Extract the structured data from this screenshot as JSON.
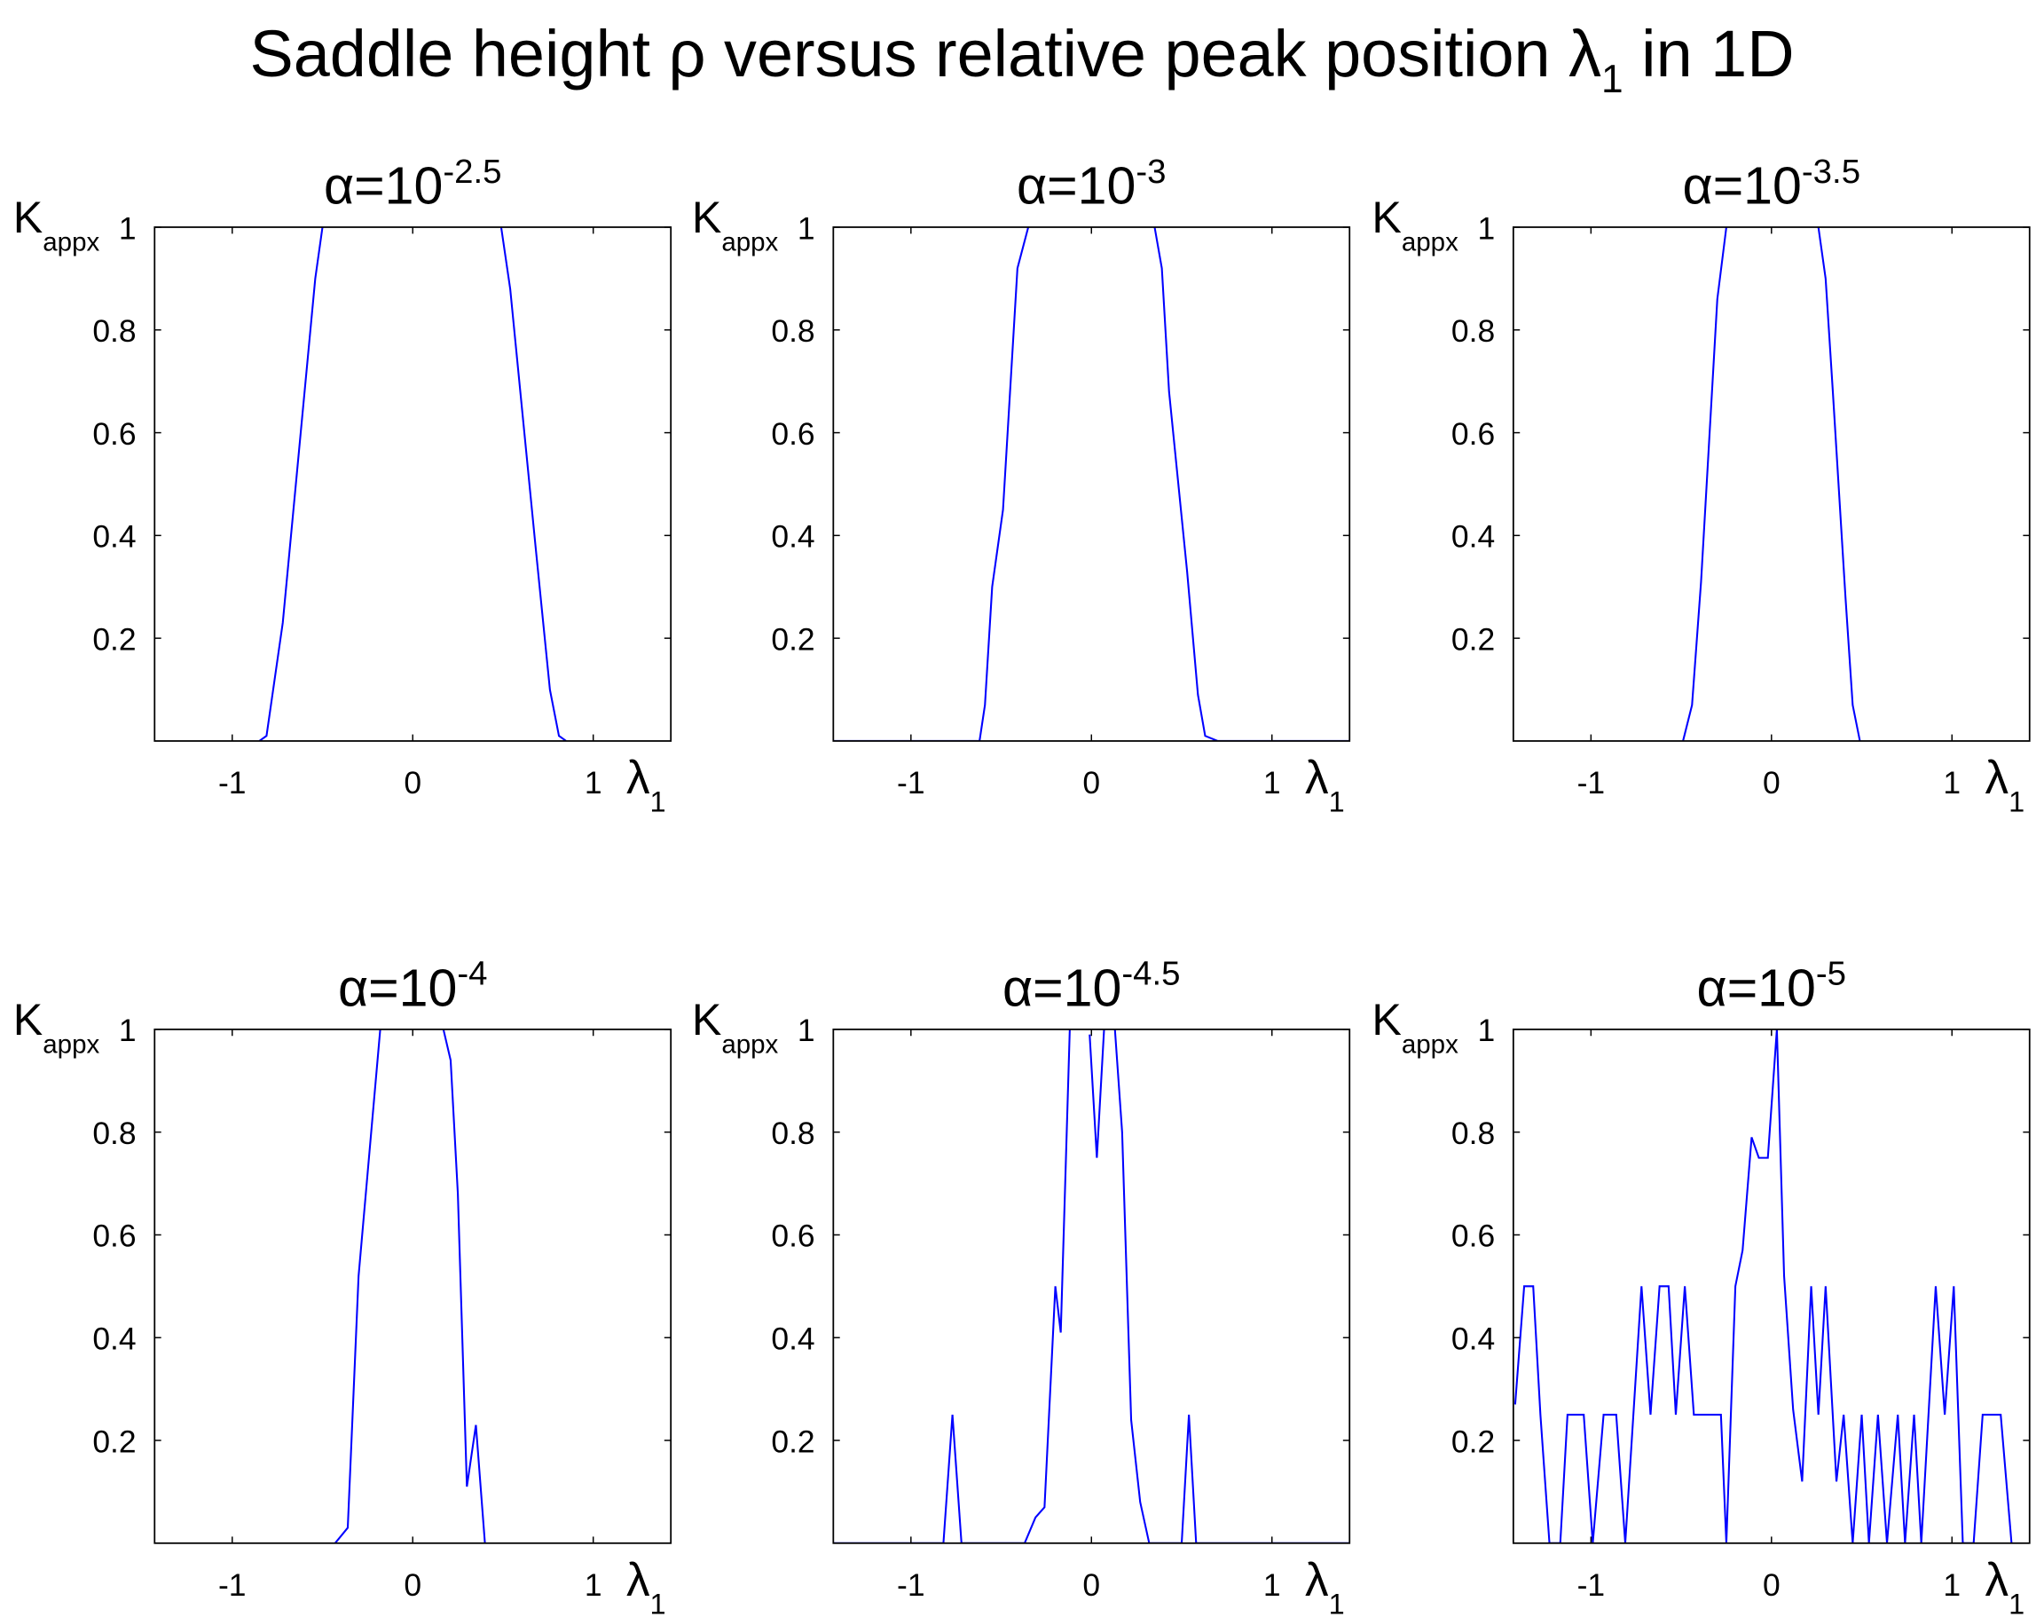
{
  "title": "Saddle height ρ versus relative peak position λ",
  "title_subscript": "1",
  "title_suffix": " in 1D",
  "chart_data": [
    {
      "type": "line",
      "title": "α=10",
      "title_superscript": "-2.5",
      "ylabel": "K",
      "ylabel_subscript": "appx",
      "xlabel": "λ",
      "xlabel_subscript": "1",
      "xlim": [
        -1.43,
        1.43
      ],
      "ylim": [
        0,
        1
      ],
      "xticks": [
        -1,
        0,
        1
      ],
      "yticks": [
        0.2,
        0.4,
        0.6,
        0.8,
        1
      ],
      "series": [
        {
          "color": "#0000ff",
          "x": [
            -0.85,
            -0.81,
            -0.72,
            -0.54,
            -0.5,
            null,
            0.49,
            0.54,
            0.68,
            0.76,
            0.81,
            0.85
          ],
          "values": [
            0,
            0.01,
            0.23,
            0.9,
            1,
            null,
            1,
            0.88,
            0.38,
            0.1,
            0.01,
            0
          ]
        }
      ]
    },
    {
      "type": "line",
      "title": "α=10",
      "title_superscript": "-3",
      "ylabel": "K",
      "ylabel_subscript": "appx",
      "xlabel": "λ",
      "xlabel_subscript": "1",
      "xlim": [
        -1.43,
        1.43
      ],
      "ylim": [
        0,
        1
      ],
      "xticks": [
        -1,
        0,
        1
      ],
      "yticks": [
        0.2,
        0.4,
        0.6,
        0.8,
        1
      ],
      "series": [
        {
          "color": "#0000ff",
          "x": [
            -1.43,
            -0.62,
            -0.59,
            -0.55,
            -0.49,
            -0.41,
            -0.35,
            null,
            0.35,
            0.39,
            0.43,
            0.53,
            0.59,
            0.63,
            0.7,
            1.43
          ],
          "values": [
            0,
            0,
            0.07,
            0.3,
            0.45,
            0.92,
            1,
            null,
            1,
            0.92,
            0.68,
            0.33,
            0.09,
            0.01,
            0,
            0
          ]
        }
      ]
    },
    {
      "type": "line",
      "title": "α=10",
      "title_superscript": "-3.5",
      "ylabel": "K",
      "ylabel_subscript": "appx",
      "xlabel": "λ",
      "xlabel_subscript": "1",
      "xlim": [
        -1.43,
        1.43
      ],
      "ylim": [
        0,
        1
      ],
      "xticks": [
        -1,
        0,
        1
      ],
      "yticks": [
        0.2,
        0.4,
        0.6,
        0.8,
        1
      ],
      "series": [
        {
          "color": "#0000ff",
          "x": [
            -0.49,
            -0.44,
            -0.39,
            -0.3,
            -0.25,
            null,
            0.26,
            0.3,
            0.34,
            0.41,
            0.45,
            0.49
          ],
          "values": [
            0,
            0.07,
            0.31,
            0.86,
            1,
            null,
            1,
            0.9,
            0.68,
            0.28,
            0.07,
            0
          ]
        }
      ]
    },
    {
      "type": "line",
      "title": "α=10",
      "title_superscript": "-4",
      "ylabel": "K",
      "ylabel_subscript": "appx",
      "xlabel": "λ",
      "xlabel_subscript": "1",
      "xlim": [
        -1.43,
        1.43
      ],
      "ylim": [
        0,
        1
      ],
      "xticks": [
        -1,
        0,
        1
      ],
      "yticks": [
        0.2,
        0.4,
        0.6,
        0.8,
        1
      ],
      "series": [
        {
          "color": "#0000ff",
          "x": [
            -0.43,
            -0.36,
            -0.3,
            -0.25,
            -0.18,
            null,
            0.17,
            0.21,
            0.25,
            0.3,
            0.35,
            0.4
          ],
          "values": [
            0,
            0.03,
            0.52,
            0.72,
            1,
            null,
            1,
            0.94,
            0.68,
            0.11,
            0.23,
            0
          ]
        }
      ]
    },
    {
      "type": "line",
      "title": "α=10",
      "title_superscript": "-4.5",
      "ylabel": "K",
      "ylabel_subscript": "appx",
      "xlabel": "λ",
      "xlabel_subscript": "1",
      "xlim": [
        -1.43,
        1.43
      ],
      "ylim": [
        0,
        1
      ],
      "xticks": [
        -1,
        0,
        1
      ],
      "yticks": [
        0.2,
        0.4,
        0.6,
        0.8,
        1
      ],
      "series": [
        {
          "color": "#0000ff",
          "x": [
            -1.43,
            -0.82,
            -0.77,
            -0.72,
            -0.37,
            -0.31,
            -0.26,
            -0.2,
            -0.17,
            -0.12,
            null,
            -0.01,
            0.03,
            0.07,
            null,
            0.13,
            0.17,
            0.22,
            0.27,
            0.32,
            0.5,
            0.54,
            0.58,
            1.43
          ],
          "values": [
            0,
            0,
            0.25,
            0,
            0,
            0.05,
            0.07,
            0.5,
            0.41,
            1,
            null,
            0.99,
            0.75,
            1,
            null,
            1,
            0.8,
            0.24,
            0.08,
            0,
            0,
            0.25,
            0,
            0
          ]
        }
      ]
    },
    {
      "type": "line",
      "title": "α=10",
      "title_superscript": "-5",
      "ylabel": "K",
      "ylabel_subscript": "appx",
      "xlabel": "λ",
      "xlabel_subscript": "1",
      "xlim": [
        -1.43,
        1.43
      ],
      "ylim": [
        0,
        1
      ],
      "xticks": [
        -1,
        0,
        1
      ],
      "yticks": [
        0.2,
        0.4,
        0.6,
        0.8,
        1
      ],
      "series": [
        {
          "color": "#0000ff",
          "x": [
            -1.42,
            -1.37,
            -1.32,
            -1.28,
            -1.23,
            -1.17,
            -1.13,
            -1.04,
            -0.99,
            -0.93,
            -0.86,
            -0.81,
            -0.72,
            -0.67,
            -0.62,
            -0.57,
            -0.53,
            -0.48,
            -0.43,
            -0.28,
            -0.25,
            -0.2,
            -0.16,
            -0.11,
            -0.07,
            -0.02,
            0.03,
            0.07,
            0.12,
            0.17,
            0.22,
            0.26,
            0.3,
            0.36,
            0.4,
            0.45,
            0.5,
            0.54,
            0.59,
            0.64,
            0.7,
            0.74,
            0.79,
            0.83,
            0.91,
            0.96,
            1.01,
            1.06,
            1.12,
            1.17,
            1.27,
            1.33
          ],
          "values": [
            0.27,
            0.5,
            0.5,
            0.25,
            0,
            0,
            0.25,
            0.25,
            0,
            0.25,
            0.25,
            0,
            0.5,
            0.25,
            0.5,
            0.5,
            0.25,
            0.5,
            0.25,
            0.25,
            0,
            0.5,
            0.57,
            0.79,
            0.75,
            0.75,
            1,
            0.52,
            0.26,
            0.12,
            0.5,
            0.25,
            0.5,
            0.12,
            0.25,
            0,
            0.25,
            0,
            0.25,
            0,
            0.25,
            0,
            0.25,
            0,
            0.5,
            0.25,
            0.5,
            0,
            0,
            0.25,
            0.25,
            0
          ]
        }
      ]
    }
  ]
}
